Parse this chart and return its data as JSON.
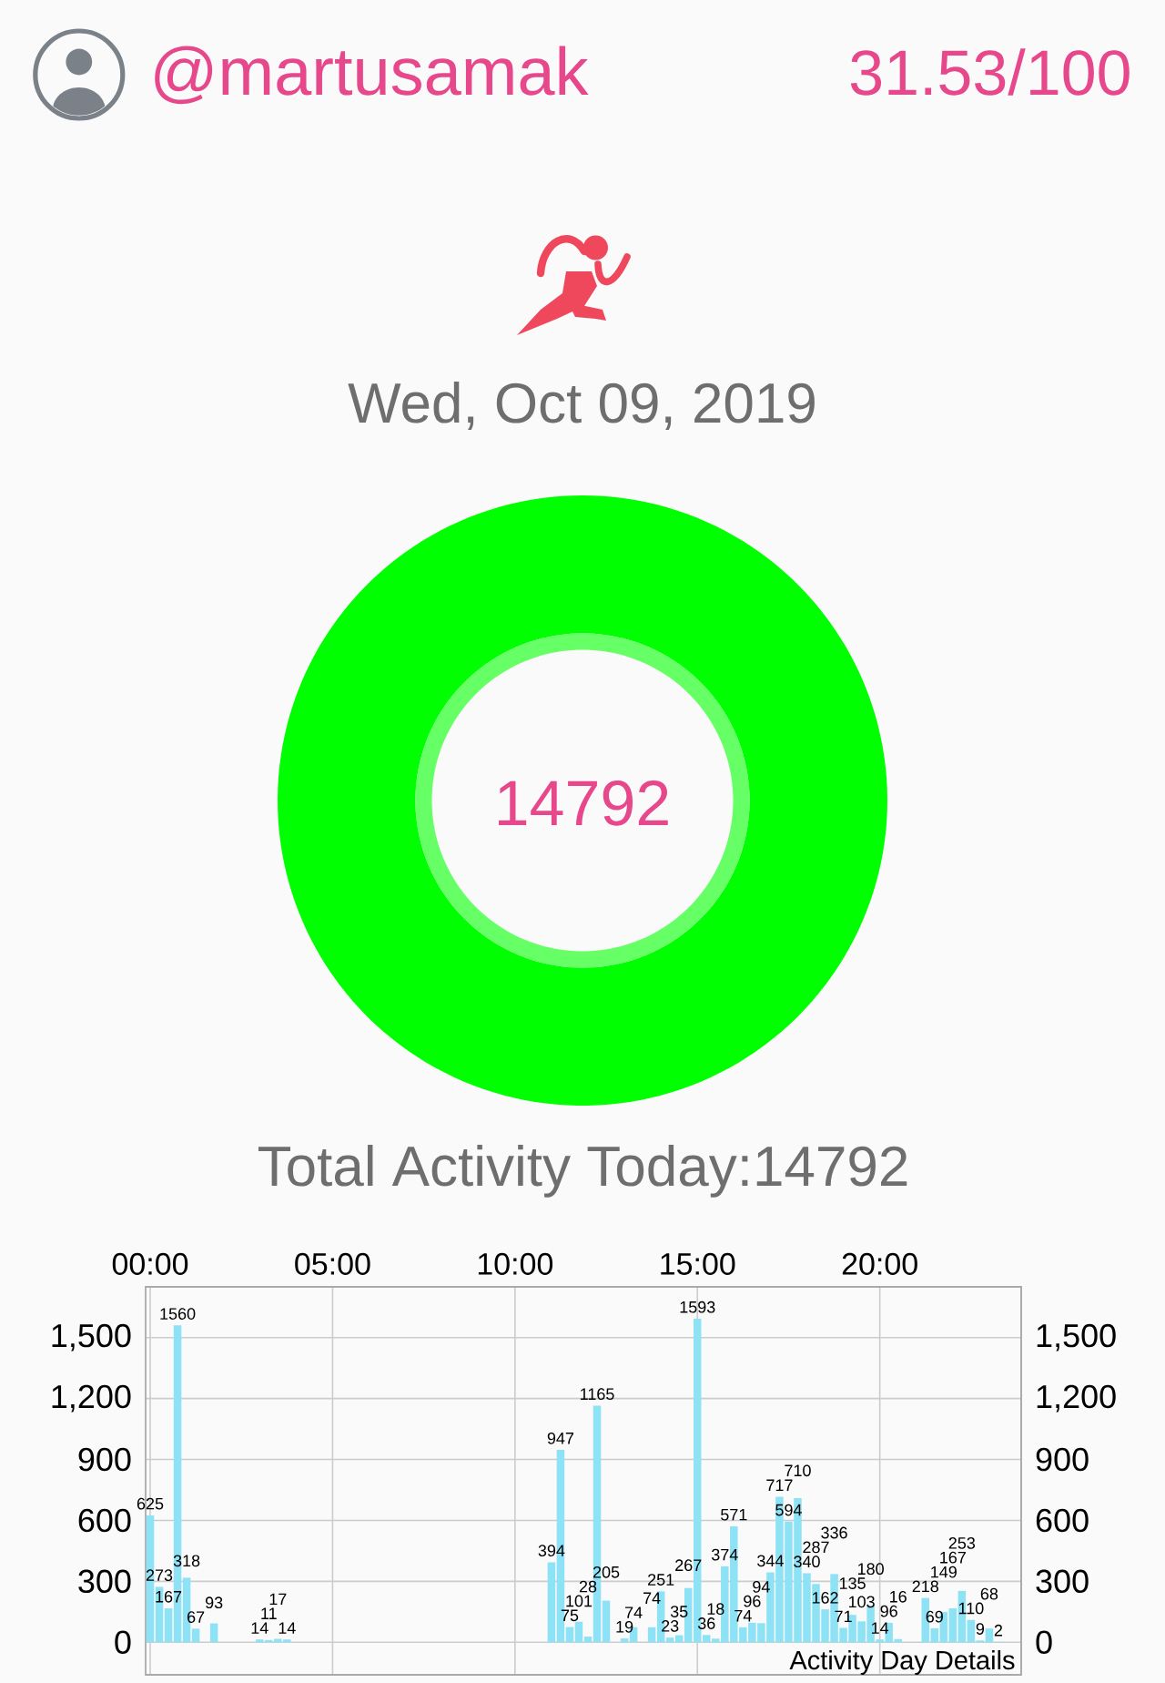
{
  "chart_data": [
    {
      "type": "donut",
      "title": "Wed, Oct 09, 2019",
      "categories": [
        null
      ],
      "values": [
        100
      ],
      "colors": [
        "#00ff00"
      ],
      "annotations": [
        "@martusamak",
        "31.53/100",
        "14792"
      ]
    },
    {
      "type": "bar",
      "title": "Total Activity Today:14792",
      "x": [
        0,
        0.25,
        0.5,
        0.75,
        1,
        1.25,
        1.75,
        3,
        3.25,
        3.5,
        3.75,
        11,
        11.25,
        11.5,
        11.75,
        12,
        12.25,
        12.5,
        13,
        13.25,
        13.75,
        14,
        14.25,
        14.5,
        14.75,
        15,
        15.25,
        15.5,
        15.75,
        16,
        16.25,
        16.5,
        16.75,
        17,
        17.25,
        17.5,
        17.75,
        18,
        18.25,
        18.5,
        18.75,
        19,
        19.25,
        19.5,
        19.75,
        20,
        20.25,
        20.5,
        21.25,
        21.5,
        21.75,
        22,
        22.25,
        22.5,
        22.75,
        23,
        23.25
      ],
      "values": [
        625,
        273,
        167,
        1560,
        318,
        67,
        93,
        14,
        11,
        17,
        14,
        394,
        947,
        75,
        101,
        28,
        1165,
        205,
        19,
        74,
        74,
        251,
        23,
        35,
        267,
        1593,
        36,
        18,
        374,
        571,
        74,
        96,
        94,
        344,
        717,
        594,
        710,
        340,
        287,
        162,
        336,
        71,
        135,
        103,
        180,
        14,
        96,
        16,
        218,
        69,
        149,
        167,
        253,
        110,
        9,
        68,
        2
      ],
      "color": "#8de3f5",
      "xlim": [
        -0.125,
        23.875
      ],
      "xticks": [
        {
          "value": 0,
          "label": "00:00"
        },
        {
          "value": 5,
          "label": "05:00"
        },
        {
          "value": 10,
          "label": "10:00"
        },
        {
          "value": 15,
          "label": "15:00"
        },
        {
          "value": 20,
          "label": "20:00"
        }
      ],
      "ylim": [
        -160,
        1750
      ],
      "yticks": [
        0,
        300,
        600,
        900,
        {
          "value": 1200,
          "label": "1,200"
        },
        {
          "value": 1500,
          "label": "1,500"
        }
      ],
      "y2lim": [
        -160,
        1750
      ],
      "y2ticks": [
        0,
        300,
        600,
        900,
        {
          "value": 1200,
          "label": "1,200"
        },
        {
          "value": 1500,
          "label": "1,500"
        }
      ],
      "grid": true,
      "data_labels": true,
      "annotations": [
        "Activity Day Details"
      ]
    }
  ]
}
